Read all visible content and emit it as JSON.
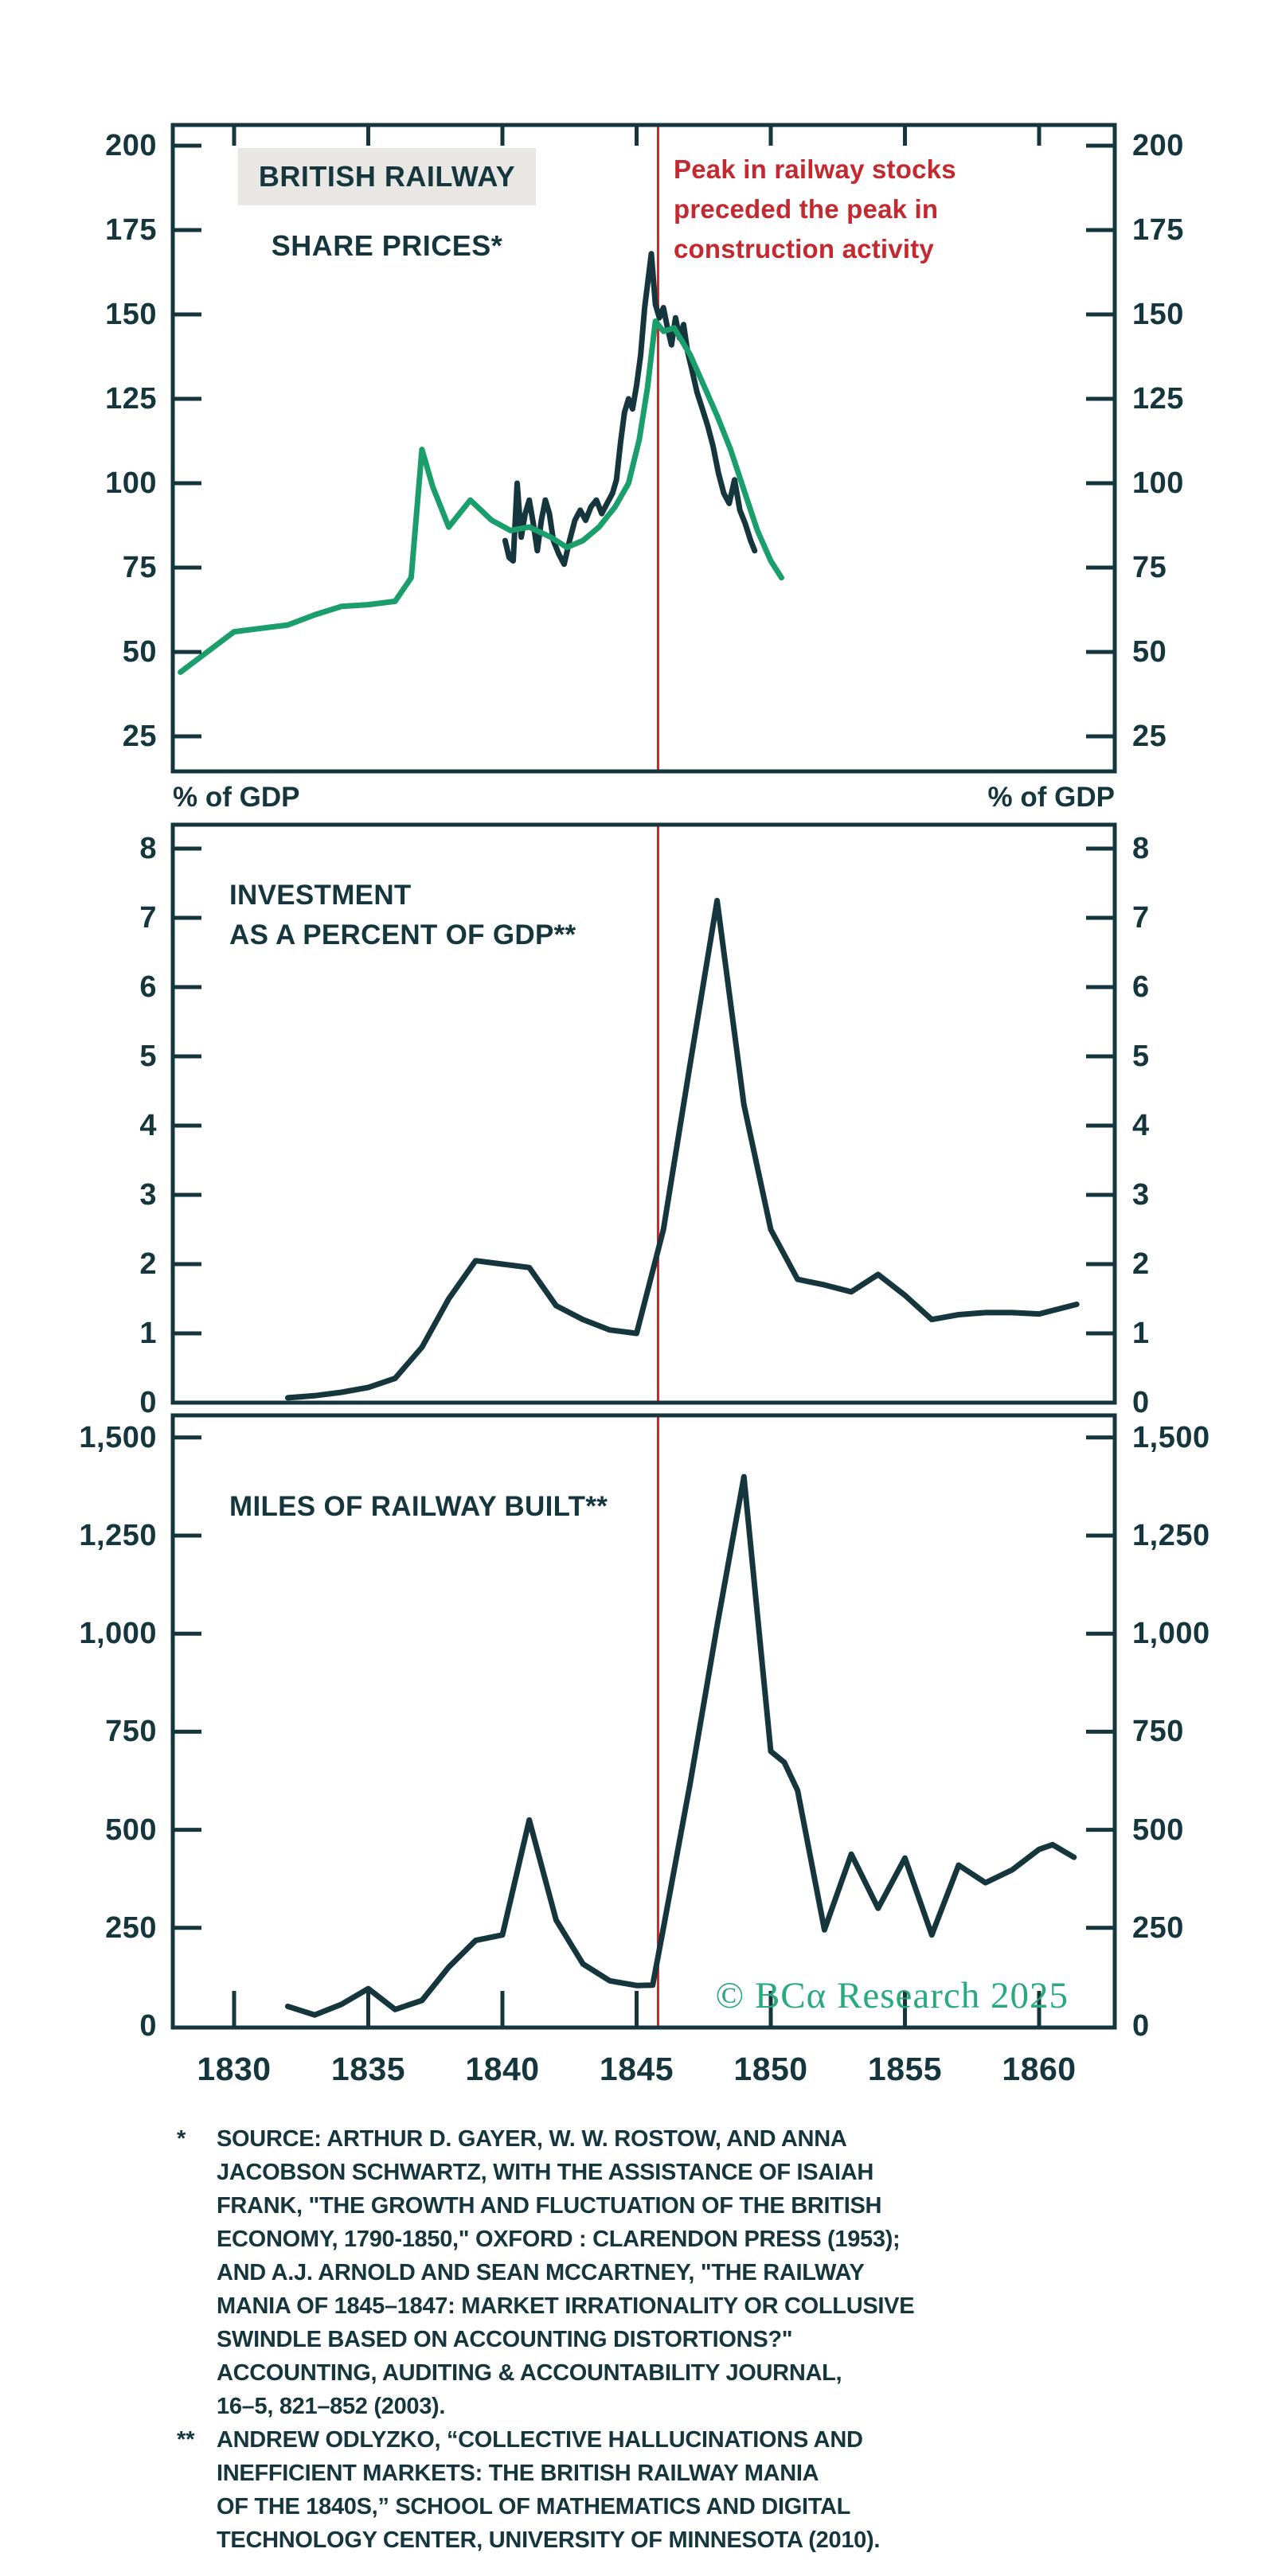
{
  "colors": {
    "ink": "#16363e",
    "green_line": "#1a9e6b",
    "dark_line": "#16363e",
    "event_red": "#c3292f",
    "title_highlight_bg": "#e8e7e3",
    "copyright_green": "#2aa97d"
  },
  "annotation": {
    "lines": [
      "Peak in railway stocks",
      "preceded the peak in",
      "construction activity"
    ]
  },
  "axis_labels": {
    "left_pct_gdp": "% of GDP",
    "right_pct_gdp": "% of GDP"
  },
  "x_axis": {
    "tick_years": [
      1830,
      1835,
      1840,
      1845,
      1850,
      1855,
      1860
    ],
    "tick_labels": [
      "1830",
      "1835",
      "1840",
      "1845",
      "1850",
      "1855",
      "1860"
    ]
  },
  "event_line": {
    "year": 1845.8
  },
  "copyright": {
    "text": "© BCα Research 2025"
  },
  "chart_data": [
    {
      "type": "line",
      "panel": "british-railway-share-prices",
      "title_lines": [
        "BRITISH RAILWAY",
        "SHARE PRICES*"
      ],
      "ylim": [
        14,
        206
      ],
      "yticks": [
        25,
        50,
        75,
        100,
        125,
        150,
        175,
        200
      ],
      "ytick_labels": [
        "25",
        "50",
        "75",
        "100",
        "125",
        "150",
        "175",
        "200"
      ],
      "xlim": [
        1827.7,
        1862.8
      ],
      "grid": false,
      "series": [
        {
          "name": "share-price-index-dark",
          "color": "#16363e",
          "points": [
            [
              1840.1,
              83
            ],
            [
              1840.25,
              78
            ],
            [
              1840.4,
              77
            ],
            [
              1840.55,
              100
            ],
            [
              1840.7,
              84
            ],
            [
              1840.85,
              91
            ],
            [
              1841,
              95
            ],
            [
              1841.15,
              88
            ],
            [
              1841.3,
              80
            ],
            [
              1841.45,
              89
            ],
            [
              1841.6,
              95
            ],
            [
              1841.75,
              91
            ],
            [
              1841.9,
              83
            ],
            [
              1842.1,
              79
            ],
            [
              1842.3,
              76
            ],
            [
              1842.5,
              83
            ],
            [
              1842.7,
              89
            ],
            [
              1842.9,
              92
            ],
            [
              1843.1,
              89
            ],
            [
              1843.3,
              93
            ],
            [
              1843.5,
              95
            ],
            [
              1843.7,
              91
            ],
            [
              1843.9,
              94
            ],
            [
              1844.1,
              97
            ],
            [
              1844.25,
              101
            ],
            [
              1844.4,
              112
            ],
            [
              1844.55,
              121
            ],
            [
              1844.7,
              125
            ],
            [
              1844.85,
              122
            ],
            [
              1845,
              129
            ],
            [
              1845.15,
              138
            ],
            [
              1845.3,
              152
            ],
            [
              1845.55,
              168
            ],
            [
              1845.7,
              153
            ],
            [
              1845.85,
              149
            ],
            [
              1846,
              152
            ],
            [
              1846.15,
              146
            ],
            [
              1846.3,
              141
            ],
            [
              1846.45,
              149
            ],
            [
              1846.6,
              143
            ],
            [
              1846.75,
              147
            ],
            [
              1846.9,
              139
            ],
            [
              1847.05,
              134
            ],
            [
              1847.25,
              127
            ],
            [
              1847.45,
              122
            ],
            [
              1847.65,
              117
            ],
            [
              1847.85,
              111
            ],
            [
              1848.05,
              103
            ],
            [
              1848.25,
              97
            ],
            [
              1848.45,
              94
            ],
            [
              1848.65,
              101
            ],
            [
              1848.85,
              92
            ],
            [
              1849.05,
              88
            ],
            [
              1849.25,
              83
            ],
            [
              1849.4,
              80
            ]
          ]
        },
        {
          "name": "share-price-index-green",
          "color": "#1a9e6b",
          "points": [
            [
              1828,
              44
            ],
            [
              1828.5,
              47
            ],
            [
              1829,
              50
            ],
            [
              1830,
              56
            ],
            [
              1831,
              57
            ],
            [
              1832,
              58
            ],
            [
              1833,
              61
            ],
            [
              1834,
              63.5
            ],
            [
              1835,
              64
            ],
            [
              1836,
              65
            ],
            [
              1836.6,
              72
            ],
            [
              1837,
              110
            ],
            [
              1837.4,
              99
            ],
            [
              1838,
              87
            ],
            [
              1838.8,
              95
            ],
            [
              1839.6,
              89
            ],
            [
              1840.3,
              86
            ],
            [
              1841,
              87
            ],
            [
              1841.8,
              84
            ],
            [
              1842.4,
              81
            ],
            [
              1843,
              83
            ],
            [
              1843.6,
              87
            ],
            [
              1844.2,
              93
            ],
            [
              1844.7,
              100
            ],
            [
              1845.1,
              113
            ],
            [
              1845.4,
              128
            ],
            [
              1845.7,
              148
            ],
            [
              1846,
              145
            ],
            [
              1846.4,
              146
            ],
            [
              1847,
              138
            ],
            [
              1847.5,
              129
            ],
            [
              1848,
              120
            ],
            [
              1848.5,
              110
            ],
            [
              1849,
              98
            ],
            [
              1849.5,
              86
            ],
            [
              1850,
              77
            ],
            [
              1850.4,
              72
            ]
          ]
        }
      ]
    },
    {
      "type": "line",
      "panel": "investment-as-percent-of-gdp",
      "title_lines": [
        "INVESTMENT",
        "AS A PERCENT OF GDP**"
      ],
      "ylabel": "% of GDP",
      "ylim": [
        0,
        8.35
      ],
      "yticks": [
        0,
        1,
        2,
        3,
        4,
        5,
        6,
        7,
        8
      ],
      "ytick_labels": [
        "0",
        "1",
        "2",
        "3",
        "4",
        "5",
        "6",
        "7",
        "8"
      ],
      "xlim": [
        1827.7,
        1862.8
      ],
      "grid": false,
      "series": [
        {
          "name": "investment-percent-of-gdp",
          "color": "#16363e",
          "points": [
            [
              1832,
              0.07
            ],
            [
              1833,
              0.1
            ],
            [
              1834,
              0.15
            ],
            [
              1835,
              0.22
            ],
            [
              1836,
              0.35
            ],
            [
              1837,
              0.8
            ],
            [
              1838,
              1.5
            ],
            [
              1839,
              2.05
            ],
            [
              1840,
              2.0
            ],
            [
              1841,
              1.95
            ],
            [
              1842,
              1.4
            ],
            [
              1843,
              1.2
            ],
            [
              1844,
              1.05
            ],
            [
              1845,
              1.0
            ],
            [
              1846,
              2.5
            ],
            [
              1847,
              4.9
            ],
            [
              1848,
              7.25
            ],
            [
              1849,
              4.3
            ],
            [
              1850,
              2.5
            ],
            [
              1851,
              1.78
            ],
            [
              1852,
              1.7
            ],
            [
              1853,
              1.6
            ],
            [
              1854,
              1.85
            ],
            [
              1855,
              1.55
            ],
            [
              1856,
              1.2
            ],
            [
              1857,
              1.27
            ],
            [
              1858,
              1.3
            ],
            [
              1859,
              1.3
            ],
            [
              1860,
              1.28
            ],
            [
              1861.4,
              1.42
            ]
          ]
        }
      ]
    },
    {
      "type": "line",
      "panel": "miles-of-railway-built",
      "title_lines": [
        "MILES OF RAILWAY BUILT**"
      ],
      "ylim": [
        0,
        1560
      ],
      "yticks": [
        0,
        250,
        500,
        750,
        1000,
        1250,
        1500
      ],
      "ytick_labels": [
        "0",
        "250",
        "500",
        "750",
        "1,000",
        "1,250",
        "1,500"
      ],
      "xlim": [
        1827.7,
        1862.8
      ],
      "grid": false,
      "series": [
        {
          "name": "miles-of-railway-built",
          "color": "#16363e",
          "points": [
            [
              1832,
              50
            ],
            [
              1833,
              28
            ],
            [
              1834,
              55
            ],
            [
              1835,
              95
            ],
            [
              1836,
              42
            ],
            [
              1837,
              65
            ],
            [
              1838,
              150
            ],
            [
              1839,
              218
            ],
            [
              1840,
              232
            ],
            [
              1841,
              525
            ],
            [
              1842,
              270
            ],
            [
              1843,
              158
            ],
            [
              1844,
              115
            ],
            [
              1845,
              103
            ],
            [
              1845.6,
              104
            ],
            [
              1846,
              250
            ],
            [
              1847,
              620
            ],
            [
              1848,
              1020
            ],
            [
              1849,
              1400
            ],
            [
              1850,
              700
            ],
            [
              1850.5,
              672
            ],
            [
              1851,
              600
            ],
            [
              1852,
              245
            ],
            [
              1853,
              438
            ],
            [
              1854,
              300
            ],
            [
              1855,
              428
            ],
            [
              1856,
              232
            ],
            [
              1857,
              410
            ],
            [
              1858,
              365
            ],
            [
              1859,
              398
            ],
            [
              1860,
              450
            ],
            [
              1860.5,
              462
            ],
            [
              1861.3,
              430
            ]
          ]
        }
      ]
    }
  ],
  "footnotes": [
    {
      "marker": "*",
      "lines": [
        "SOURCE: ARTHUR D. GAYER, W. W. ROSTOW, AND ANNA",
        "JACOBSON SCHWARTZ, WITH THE ASSISTANCE OF ISAIAH",
        "FRANK, \"THE GROWTH AND FLUCTUATION OF THE BRITISH",
        "ECONOMY, 1790-1850,\" OXFORD : CLARENDON PRESS (1953);",
        "AND A.J. ARNOLD AND SEAN MCCARTNEY, \"THE RAILWAY",
        "MANIA OF 1845–1847: MARKET IRRATIONALITY OR COLLUSIVE",
        "SWINDLE BASED ON ACCOUNTING DISTORTIONS?\"",
        "ACCOUNTING, AUDITING & ACCOUNTABILITY JOURNAL,",
        "16–5, 821–852 (2003)."
      ]
    },
    {
      "marker": "**",
      "lines": [
        "ANDREW ODLYZKO, “COLLECTIVE HALLUCINATIONS AND",
        "INEFFICIENT MARKETS: THE BRITISH RAILWAY MANIA",
        "OF THE 1840S,” SCHOOL OF MATHEMATICS AND DIGITAL",
        "TECHNOLOGY CENTER, UNIVERSITY OF MINNESOTA (2010)."
      ]
    }
  ]
}
